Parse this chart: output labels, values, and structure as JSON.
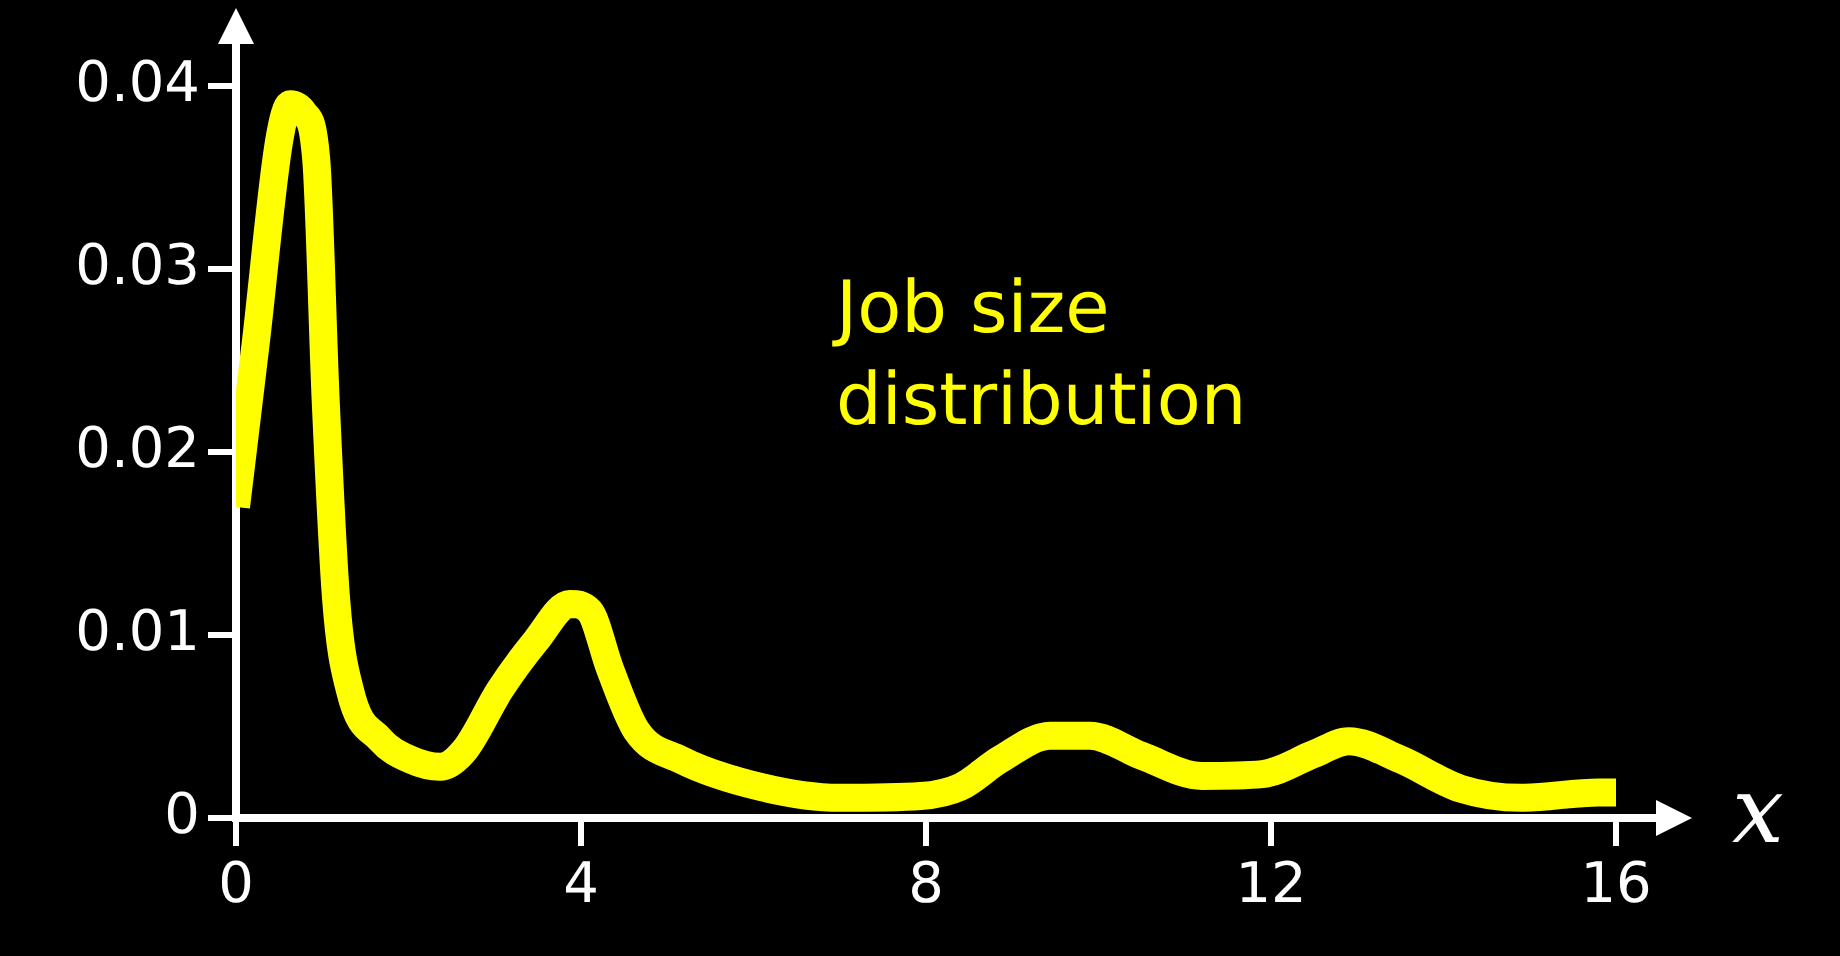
{
  "chart_data": {
    "type": "line",
    "xlabel": "x",
    "annotations": [
      "Job size distribution"
    ],
    "x": [
      0,
      0.23,
      0.5,
      0.63,
      0.79,
      0.93,
      1.04,
      1.16,
      1.32,
      1.67,
      2.02,
      2.37,
      2.65,
      3.06,
      3.48,
      3.87,
      4.1,
      4.34,
      4.64,
      5.15,
      6.08,
      7.0,
      7.94,
      8.4,
      8.86,
      9.44,
      9.9,
      10.5,
      11.2,
      11.9,
      12.5,
      12.9,
      13.5,
      14.2,
      14.9,
      15.8,
      16
    ],
    "series": [
      {
        "color": "#ffff00",
        "values": [
          0.017,
          0.026,
          0.037,
          0.039,
          0.0385,
          0.036,
          0.0228,
          0.012,
          0.007,
          0.0043,
          0.0032,
          0.0028,
          0.0037,
          0.007,
          0.0097,
          0.0117,
          0.0113,
          0.0081,
          0.0048,
          0.0032,
          0.0017,
          0.0011,
          0.0012,
          0.0017,
          0.0032,
          0.0045,
          0.0045,
          0.0034,
          0.0023,
          0.0024,
          0.0035,
          0.0042,
          0.0032,
          0.0016,
          0.0011,
          0.0014,
          0.0014
        ]
      }
    ],
    "xlim": [
      0,
      16
    ],
    "xticks": [
      0,
      4,
      8,
      12,
      16
    ],
    "ylim": [
      0,
      0.04
    ],
    "yticks": [
      0,
      0.01,
      0.02,
      0.03,
      0.04
    ],
    "grid": false,
    "legend": false,
    "marker": "none",
    "line_style": "solid"
  }
}
